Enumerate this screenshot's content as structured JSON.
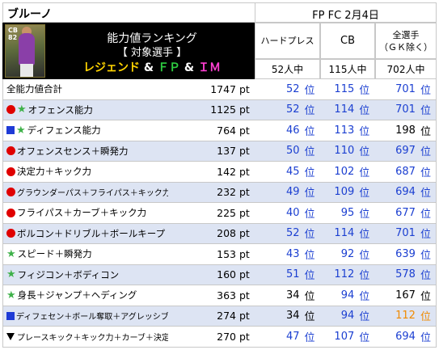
{
  "header": {
    "player_name": "ブルーノ",
    "date_line": "FP FC 2月4日",
    "card_position": "CB",
    "card_rating": "82",
    "banner_title": "能力値ランキング",
    "banner_subtitle": "【 対象選手 】",
    "banner_cats": {
      "legend": "レジェンド",
      "amp1": " & ",
      "fp": "ＦＰ",
      "amp2": " & ",
      "im": "ＩＭ"
    }
  },
  "columns": [
    {
      "head": "ハードプレス",
      "count": "52人中"
    },
    {
      "head": "CB",
      "count": "115人中"
    },
    {
      "head": "全選手\n（ＧＫ除く）",
      "count": "702人中"
    }
  ],
  "unit_pt": "pt",
  "unit_rank": "位",
  "rows": [
    {
      "icons": [],
      "label": "全能力値合計",
      "total": "1747",
      "ranks": [
        "52",
        "115",
        "701"
      ],
      "colors": [
        "blue",
        "blue",
        "blue"
      ]
    },
    {
      "icons": [
        "circle",
        "star"
      ],
      "label": "オフェンス能力",
      "total": "1125",
      "ranks": [
        "52",
        "114",
        "701"
      ],
      "colors": [
        "blue",
        "blue",
        "blue"
      ]
    },
    {
      "icons": [
        "square",
        "star"
      ],
      "label": "ディフェンス能力",
      "total": "764",
      "ranks": [
        "46",
        "113",
        "198"
      ],
      "colors": [
        "blue",
        "blue",
        "black"
      ]
    },
    {
      "icons": [
        "circle"
      ],
      "label": "オフェンスセンス＋瞬発力",
      "total": "137",
      "ranks": [
        "50",
        "110",
        "697"
      ],
      "colors": [
        "blue",
        "blue",
        "blue"
      ]
    },
    {
      "icons": [
        "circle"
      ],
      "label": "決定力＋キック力",
      "total": "142",
      "ranks": [
        "45",
        "102",
        "687"
      ],
      "colors": [
        "blue",
        "blue",
        "blue"
      ]
    },
    {
      "icons": [
        "circle"
      ],
      "label": "グラウンダーパス＋フライパス＋キック力",
      "total": "232",
      "ranks": [
        "49",
        "109",
        "694"
      ],
      "colors": [
        "blue",
        "blue",
        "blue"
      ],
      "small": true
    },
    {
      "icons": [
        "circle"
      ],
      "label": "フライパス＋カーブ＋キック力",
      "total": "225",
      "ranks": [
        "40",
        "95",
        "677"
      ],
      "colors": [
        "blue",
        "blue",
        "blue"
      ]
    },
    {
      "icons": [
        "circle"
      ],
      "label": "ボルコン＋ドリブル＋ボールキープ",
      "total": "208",
      "ranks": [
        "52",
        "114",
        "701"
      ],
      "colors": [
        "blue",
        "blue",
        "blue"
      ]
    },
    {
      "icons": [
        "star"
      ],
      "label": "スピード＋瞬発力",
      "total": "153",
      "ranks": [
        "43",
        "92",
        "639"
      ],
      "colors": [
        "blue",
        "blue",
        "blue"
      ]
    },
    {
      "icons": [
        "star"
      ],
      "label": "フィジコン＋ボディコン",
      "total": "160",
      "ranks": [
        "51",
        "112",
        "578"
      ],
      "colors": [
        "blue",
        "blue",
        "blue"
      ]
    },
    {
      "icons": [
        "star"
      ],
      "label": "身長＋ジャンプ＋ヘディング",
      "total": "363",
      "ranks": [
        "34",
        "94",
        "167"
      ],
      "colors": [
        "black",
        "blue",
        "black"
      ]
    },
    {
      "icons": [
        "square"
      ],
      "label": "ディフェセン＋ボール奪取＋アグレッシブ",
      "total": "274",
      "ranks": [
        "34",
        "94",
        "112"
      ],
      "colors": [
        "black",
        "blue",
        "orange"
      ],
      "small": true
    },
    {
      "icons": [
        "tri"
      ],
      "label": "プレースキック＋キック力＋カーブ＋決定力",
      "total": "270",
      "ranks": [
        "47",
        "107",
        "694"
      ],
      "colors": [
        "blue",
        "blue",
        "blue"
      ],
      "small": true
    }
  ]
}
